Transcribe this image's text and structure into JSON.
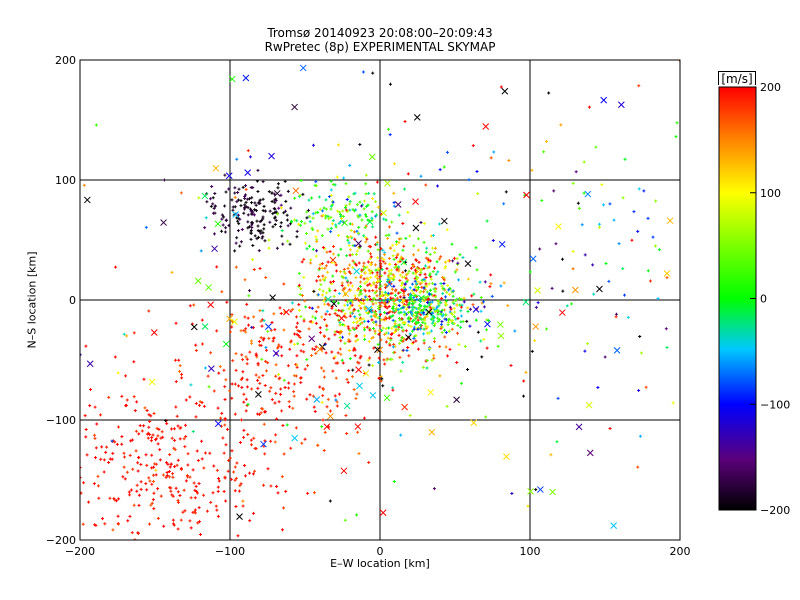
{
  "title": "Tromsø 20140923 20:08:00–20:09:43",
  "subtitle": "RwPretec (8p) EXPERIMENTAL SKYMAP",
  "chart_data": {
    "type": "scatter",
    "xlabel": "E–W location [km]",
    "ylabel": "N–S location [km]",
    "xlim": [
      -200,
      200
    ],
    "ylim": [
      -200,
      200
    ],
    "x_ticks": [
      -200,
      -100,
      0,
      100,
      200
    ],
    "y_ticks": [
      -200,
      -100,
      0,
      100,
      200
    ],
    "grid": true,
    "colorbar": {
      "label": "[m/s]",
      "range": [
        -200,
        200
      ],
      "ticks": [
        -200,
        -100,
        0,
        100,
        200
      ],
      "colormap": "rainbow (black → purple → blue → cyan → green → yellow → red)"
    },
    "markers": {
      "point": "small cross (+)",
      "highlight": "x"
    },
    "clusters": [
      {
        "cx": 5,
        "cy": 5,
        "sx": 25,
        "sy": 25,
        "n": 800,
        "v_mean": 120,
        "v_sd": 90,
        "marker": "+"
      },
      {
        "cx": 30,
        "cy": -8,
        "sx": 15,
        "sy": 12,
        "n": 250,
        "v_mean": -10,
        "v_sd": 60,
        "marker": "+"
      },
      {
        "cx": -85,
        "cy": 75,
        "sx": 15,
        "sy": 14,
        "n": 180,
        "v_mean": -190,
        "v_sd": 15,
        "marker": "+"
      },
      {
        "cx": -25,
        "cy": 70,
        "sx": 18,
        "sy": 15,
        "n": 150,
        "v_mean": 20,
        "v_sd": 50,
        "marker": "+"
      },
      {
        "cx": -140,
        "cy": -140,
        "sx": 40,
        "sy": 40,
        "n": 400,
        "v_mean": 195,
        "v_sd": 10,
        "marker": "+"
      },
      {
        "cx": -60,
        "cy": -50,
        "sx": 30,
        "sy": 30,
        "n": 250,
        "v_mean": 190,
        "v_sd": 20,
        "marker": "+"
      },
      {
        "cx": 0,
        "cy": 0,
        "sx": 110,
        "sy": 100,
        "n": 250,
        "v_mean": 0,
        "v_sd": 150,
        "marker": "+"
      },
      {
        "cx": 0,
        "cy": 0,
        "sx": 110,
        "sy": 100,
        "n": 130,
        "v_mean": 0,
        "v_sd": 150,
        "marker": "x"
      },
      {
        "cx": 140,
        "cy": 40,
        "sx": 40,
        "sy": 50,
        "n": 60,
        "v_mean": -60,
        "v_sd": 120,
        "marker": "+"
      }
    ]
  }
}
